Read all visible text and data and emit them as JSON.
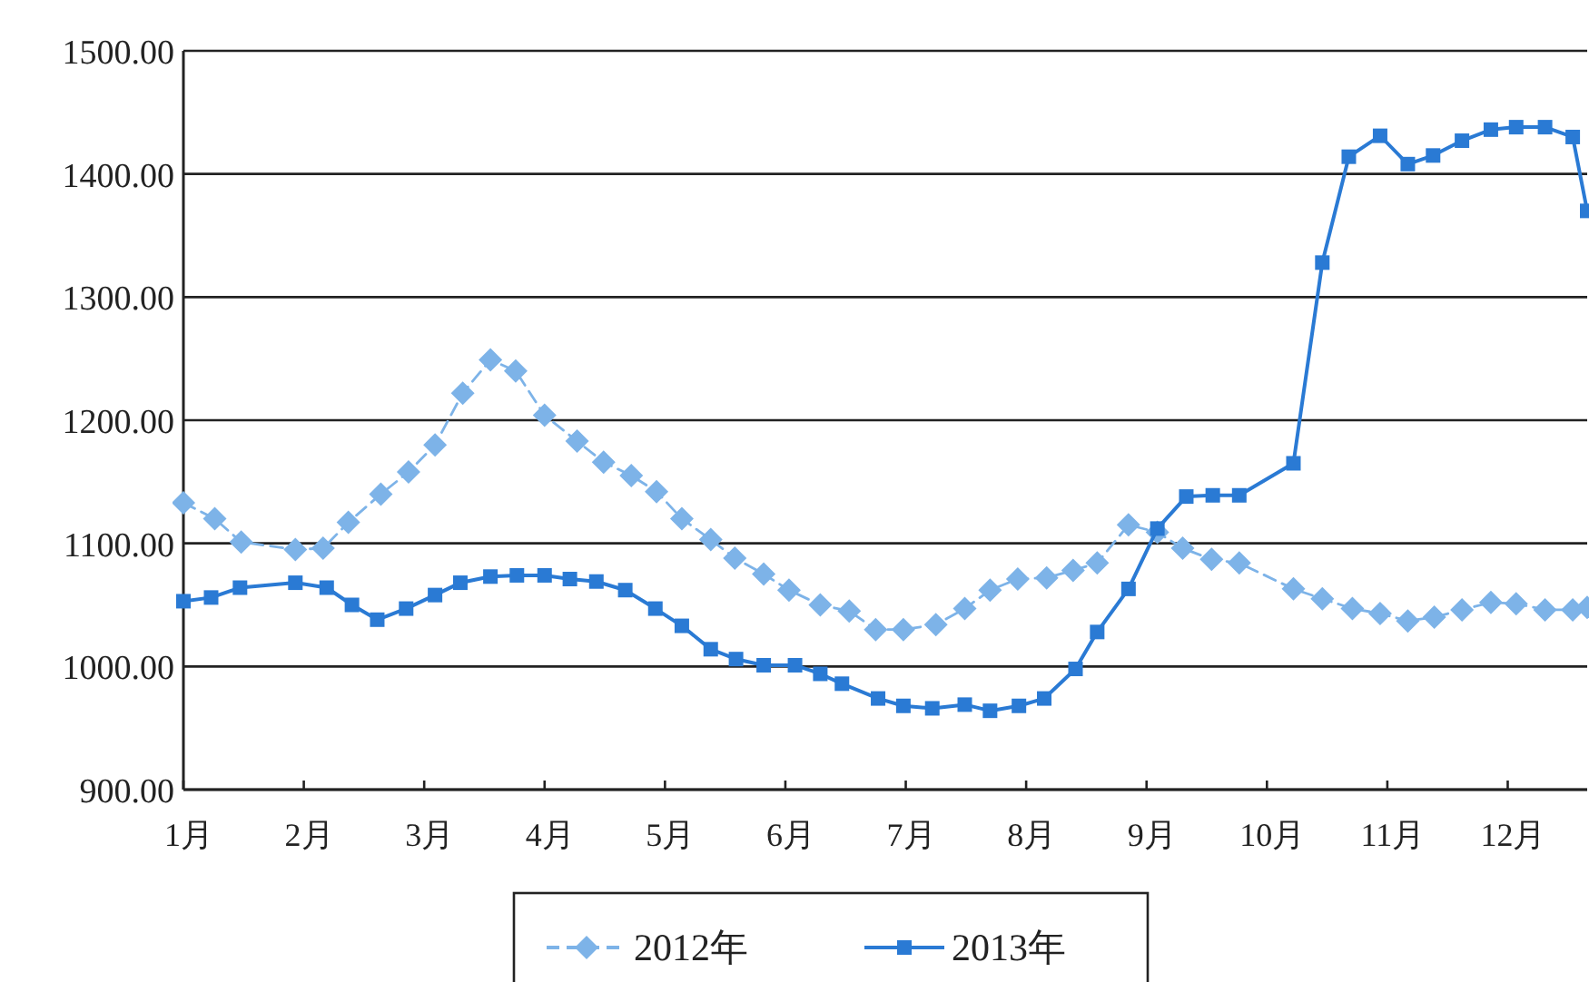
{
  "chart_data": {
    "type": "line",
    "xlim": [
      1,
      12.66
    ],
    "xticks": [
      {
        "value": 1,
        "label": "1月"
      },
      {
        "value": 2,
        "label": "2月"
      },
      {
        "value": 3,
        "label": "3月"
      },
      {
        "value": 4,
        "label": "4月"
      },
      {
        "value": 5,
        "label": "5月"
      },
      {
        "value": 6,
        "label": "6月"
      },
      {
        "value": 7,
        "label": "7月"
      },
      {
        "value": 8,
        "label": "8月"
      },
      {
        "value": 9,
        "label": "9月"
      },
      {
        "value": 10,
        "label": "10月"
      },
      {
        "value": 11,
        "label": "11月"
      },
      {
        "value": 12,
        "label": "12月"
      }
    ],
    "ylim": [
      900,
      1500
    ],
    "yticks": [
      {
        "value": 900,
        "label": "900.00"
      },
      {
        "value": 1000,
        "label": "1000.00"
      },
      {
        "value": 1100,
        "label": "1100.00"
      },
      {
        "value": 1200,
        "label": "1200.00"
      },
      {
        "value": 1300,
        "label": "1300.00"
      },
      {
        "value": 1400,
        "label": "1400.00"
      },
      {
        "value": 1500,
        "label": "1500.00"
      }
    ],
    "grid": "y",
    "legend": "bottom",
    "series": [
      {
        "name": "2012年",
        "color": "#7db3e8",
        "marker": "diamond",
        "line_style": "dashed",
        "x": [
          1.0,
          1.26,
          1.48,
          1.93,
          2.16,
          2.37,
          2.64,
          2.87,
          3.09,
          3.32,
          3.55,
          3.76,
          4.0,
          4.27,
          4.49,
          4.72,
          4.93,
          5.14,
          5.38,
          5.58,
          5.82,
          6.03,
          6.29,
          6.53,
          6.75,
          6.98,
          7.25,
          7.49,
          7.7,
          7.93,
          8.17,
          8.39,
          8.59,
          8.85,
          9.09,
          9.3,
          9.54,
          9.77,
          10.22,
          10.46,
          10.71,
          10.94,
          11.17,
          11.39,
          11.62,
          11.86,
          12.07,
          12.31,
          12.54,
          12.66
        ],
        "values": [
          1133,
          1120,
          1101,
          1095,
          1096,
          1117,
          1140,
          1158,
          1180,
          1222,
          1249,
          1240,
          1204,
          1183,
          1166,
          1155,
          1142,
          1120,
          1103,
          1088,
          1075,
          1062,
          1050,
          1045,
          1030,
          1030,
          1034,
          1047,
          1062,
          1071,
          1072,
          1078,
          1084,
          1115,
          1109,
          1096,
          1087,
          1084,
          1063,
          1055,
          1047,
          1043,
          1037,
          1040,
          1046,
          1052,
          1051,
          1046,
          1046,
          1048
        ]
      },
      {
        "name": "2013年",
        "color": "#2a7ad4",
        "marker": "square",
        "line_style": "solid",
        "x": [
          1.0,
          1.23,
          1.47,
          1.93,
          2.19,
          2.4,
          2.61,
          2.85,
          3.09,
          3.3,
          3.55,
          3.77,
          4.0,
          4.21,
          4.43,
          4.67,
          4.92,
          5.14,
          5.38,
          5.59,
          5.82,
          6.08,
          6.29,
          6.47,
          6.77,
          6.98,
          7.22,
          7.49,
          7.7,
          7.94,
          8.15,
          8.41,
          8.59,
          8.85,
          9.09,
          9.33,
          9.55,
          9.77,
          10.22,
          10.46,
          10.68,
          10.94,
          11.17,
          11.38,
          11.62,
          11.86,
          12.07,
          12.31,
          12.54,
          12.66
        ],
        "values": [
          1053,
          1056,
          1064,
          1068,
          1064,
          1050,
          1038,
          1047,
          1058,
          1068,
          1073,
          1074,
          1074,
          1071,
          1069,
          1062,
          1047,
          1033,
          1014,
          1006,
          1001,
          1001,
          994,
          986,
          974,
          968,
          966,
          969,
          964,
          968,
          974,
          998,
          1028,
          1063,
          1112,
          1138,
          1139,
          1139,
          1165,
          1328,
          1414,
          1431,
          1408,
          1415,
          1427,
          1436,
          1438,
          1438,
          1430,
          1370
        ]
      }
    ]
  }
}
